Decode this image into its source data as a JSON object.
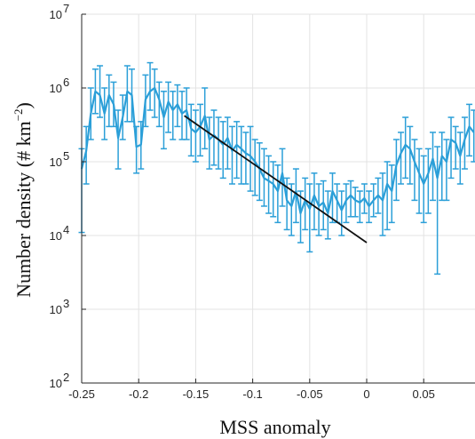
{
  "chart_data": {
    "type": "line",
    "xlabel": "MSS anomaly",
    "ylabel_main": "Number density (# km",
    "ylabel_exponent": "−2",
    "ylabel_close": ")",
    "xlim": [
      -0.25,
      0.095
    ],
    "ylim": [
      100,
      10000000
    ],
    "yscale": "log",
    "grid": true,
    "x_ticks": [
      {
        "value": -0.25,
        "label": "-0.25"
      },
      {
        "value": -0.2,
        "label": "-0.2"
      },
      {
        "value": -0.15,
        "label": "-0.15"
      },
      {
        "value": -0.1,
        "label": "-0.1"
      },
      {
        "value": -0.05,
        "label": "-0.05"
      },
      {
        "value": 0,
        "label": "0"
      },
      {
        "value": 0.05,
        "label": "0.05"
      }
    ],
    "y_ticks": [
      {
        "value": 100,
        "base": "10",
        "exp": "2"
      },
      {
        "value": 1000,
        "base": "10",
        "exp": "3"
      },
      {
        "value": 10000,
        "base": "10",
        "exp": "4"
      },
      {
        "value": 100000,
        "base": "10",
        "exp": "5"
      },
      {
        "value": 1000000,
        "base": "10",
        "exp": "6"
      },
      {
        "value": 10000000,
        "base": "10",
        "exp": "7"
      }
    ],
    "series_color": "#2b9fd8",
    "fit_color": "#111111",
    "series": [
      {
        "x": [
          -0.25,
          -0.246,
          -0.242,
          -0.238,
          -0.234,
          -0.23,
          -0.226,
          -0.222,
          -0.218,
          -0.214,
          -0.21,
          -0.206,
          -0.202,
          -0.198,
          -0.194,
          -0.19,
          -0.186,
          -0.182,
          -0.178,
          -0.174,
          -0.17,
          -0.166,
          -0.162,
          -0.158,
          -0.154,
          -0.15,
          -0.146,
          -0.142,
          -0.138,
          -0.134,
          -0.13,
          -0.126,
          -0.122,
          -0.118,
          -0.114,
          -0.11,
          -0.106,
          -0.102,
          -0.098,
          -0.094,
          -0.09,
          -0.086,
          -0.082,
          -0.078,
          -0.074,
          -0.07,
          -0.066,
          -0.062,
          -0.058,
          -0.054,
          -0.05,
          -0.046,
          -0.042,
          -0.038,
          -0.034,
          -0.03,
          -0.026,
          -0.022,
          -0.018,
          -0.014,
          -0.01,
          -0.006,
          -0.002,
          0.002,
          0.006,
          0.01,
          0.014,
          0.018,
          0.022,
          0.026,
          0.03,
          0.034,
          0.038,
          0.042,
          0.046,
          0.05,
          0.054,
          0.058,
          0.062,
          0.066,
          0.07,
          0.074,
          0.078,
          0.082,
          0.086,
          0.09,
          0.094
        ],
        "y": [
          80000,
          140000,
          450000,
          900000,
          800000,
          450000,
          800000,
          600000,
          210000,
          400000,
          900000,
          800000,
          160000,
          170000,
          700000,
          900000,
          1000000,
          700000,
          400000,
          650000,
          500000,
          600000,
          450000,
          500000,
          280000,
          250000,
          300000,
          420000,
          200000,
          230000,
          200000,
          170000,
          210000,
          140000,
          170000,
          150000,
          130000,
          120000,
          100000,
          80000,
          60000,
          55000,
          50000,
          40000,
          70000,
          30000,
          25000,
          40000,
          20000,
          30000,
          23000,
          35000,
          25000,
          28000,
          20000,
          40000,
          30000,
          22000,
          30000,
          35000,
          30000,
          28000,
          32000,
          25000,
          30000,
          35000,
          30000,
          50000,
          40000,
          90000,
          130000,
          170000,
          150000,
          100000,
          70000,
          50000,
          70000,
          110000,
          60000,
          120000,
          100000,
          200000,
          180000,
          120000,
          200000,
          300000,
          250000
        ],
        "lower": [
          11000,
          50000,
          200000,
          450000,
          400000,
          200000,
          300000,
          300000,
          80000,
          200000,
          350000,
          350000,
          70000,
          80000,
          300000,
          500000,
          400000,
          300000,
          150000,
          250000,
          200000,
          300000,
          200000,
          200000,
          120000,
          100000,
          120000,
          150000,
          80000,
          90000,
          80000,
          60000,
          80000,
          50000,
          60000,
          50000,
          50000,
          40000,
          35000,
          30000,
          25000,
          20000,
          18000,
          15000,
          25000,
          12000,
          10000,
          15000,
          8000,
          12000,
          6000,
          12000,
          10000,
          12000,
          9000,
          15000,
          15000,
          10000,
          15000,
          18000,
          18000,
          15000,
          20000,
          15000,
          18000,
          20000,
          10000,
          12000,
          15000,
          30000,
          50000,
          60000,
          50000,
          30000,
          20000,
          15000,
          20000,
          30000,
          3000,
          30000,
          30000,
          60000,
          80000,
          50000,
          80000,
          120000,
          100000
        ],
        "upper": [
          150000,
          300000,
          1000000,
          1800000,
          2000000,
          1000000,
          1500000,
          1200000,
          500000,
          800000,
          2000000,
          1800000,
          300000,
          350000,
          1500000,
          2200000,
          1800000,
          1200000,
          900000,
          1200000,
          900000,
          1100000,
          900000,
          1000000,
          600000,
          500000,
          600000,
          1000000,
          400000,
          500000,
          400000,
          350000,
          400000,
          300000,
          350000,
          300000,
          250000,
          300000,
          200000,
          180000,
          150000,
          120000,
          100000,
          90000,
          150000,
          60000,
          50000,
          80000,
          40000,
          60000,
          50000,
          70000,
          50000,
          55000,
          40000,
          70000,
          50000,
          40000,
          50000,
          55000,
          45000,
          40000,
          50000,
          40000,
          50000,
          60000,
          70000,
          100000,
          90000,
          200000,
          250000,
          400000,
          300000,
          200000,
          150000,
          120000,
          150000,
          250000,
          160000,
          250000,
          200000,
          400000,
          300000,
          250000,
          400000,
          600000,
          500000
        ]
      }
    ],
    "fit_line": {
      "x": [
        -0.16,
        0
      ],
      "y": [
        420000,
        8000
      ]
    }
  }
}
